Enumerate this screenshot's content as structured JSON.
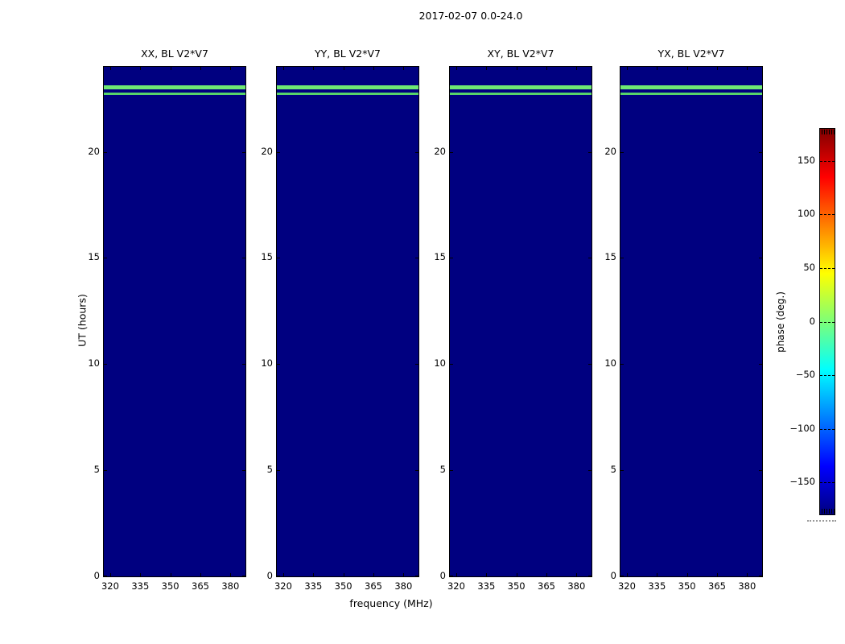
{
  "chart_data": {
    "type": "heatmap",
    "title": "2017-02-07 0.0-24.0",
    "xlabel": "frequency (MHz)",
    "ylabel": "UT (hours)",
    "x_ticks": [
      320,
      335,
      350,
      365,
      380
    ],
    "x_range": [
      316.8,
      387.5
    ],
    "y_ticks": [
      0,
      5,
      10,
      15,
      20
    ],
    "y_range": [
      0,
      24
    ],
    "grid": false,
    "legend": "none",
    "panels": [
      {
        "title": "XX, BL V2*V7"
      },
      {
        "title": "YY, BL V2*V7"
      },
      {
        "title": "XY, BL V2*V7"
      },
      {
        "title": "YX, BL V2*V7"
      }
    ],
    "panel_content": {
      "background_phase_deg": -180,
      "background_color": "#000080",
      "features": [
        {
          "kind": "horizontal-band",
          "ut_start": 22.85,
          "ut_end": 23.06,
          "phase_deg": 0,
          "color": "#6fe873"
        },
        {
          "kind": "horizontal-line",
          "ut_start": 22.62,
          "ut_end": 22.7,
          "phase_deg": 0,
          "color": "#57d46a"
        }
      ]
    },
    "colorbar": {
      "label": "phase (deg.)",
      "ticks": [
        150,
        100,
        50,
        0,
        -50,
        -100,
        -150
      ],
      "range_deg": [
        -180,
        180
      ],
      "colormap": "jet",
      "gradient_stops": [
        {
          "pos": 0.0,
          "color": "#000080"
        },
        {
          "pos": 0.125,
          "color": "#0000ff"
        },
        {
          "pos": 0.375,
          "color": "#00ffff"
        },
        {
          "pos": 0.5,
          "color": "#7dff78"
        },
        {
          "pos": 0.625,
          "color": "#ffff00"
        },
        {
          "pos": 0.875,
          "color": "#ff0000"
        },
        {
          "pos": 1.0,
          "color": "#800000"
        }
      ]
    }
  }
}
